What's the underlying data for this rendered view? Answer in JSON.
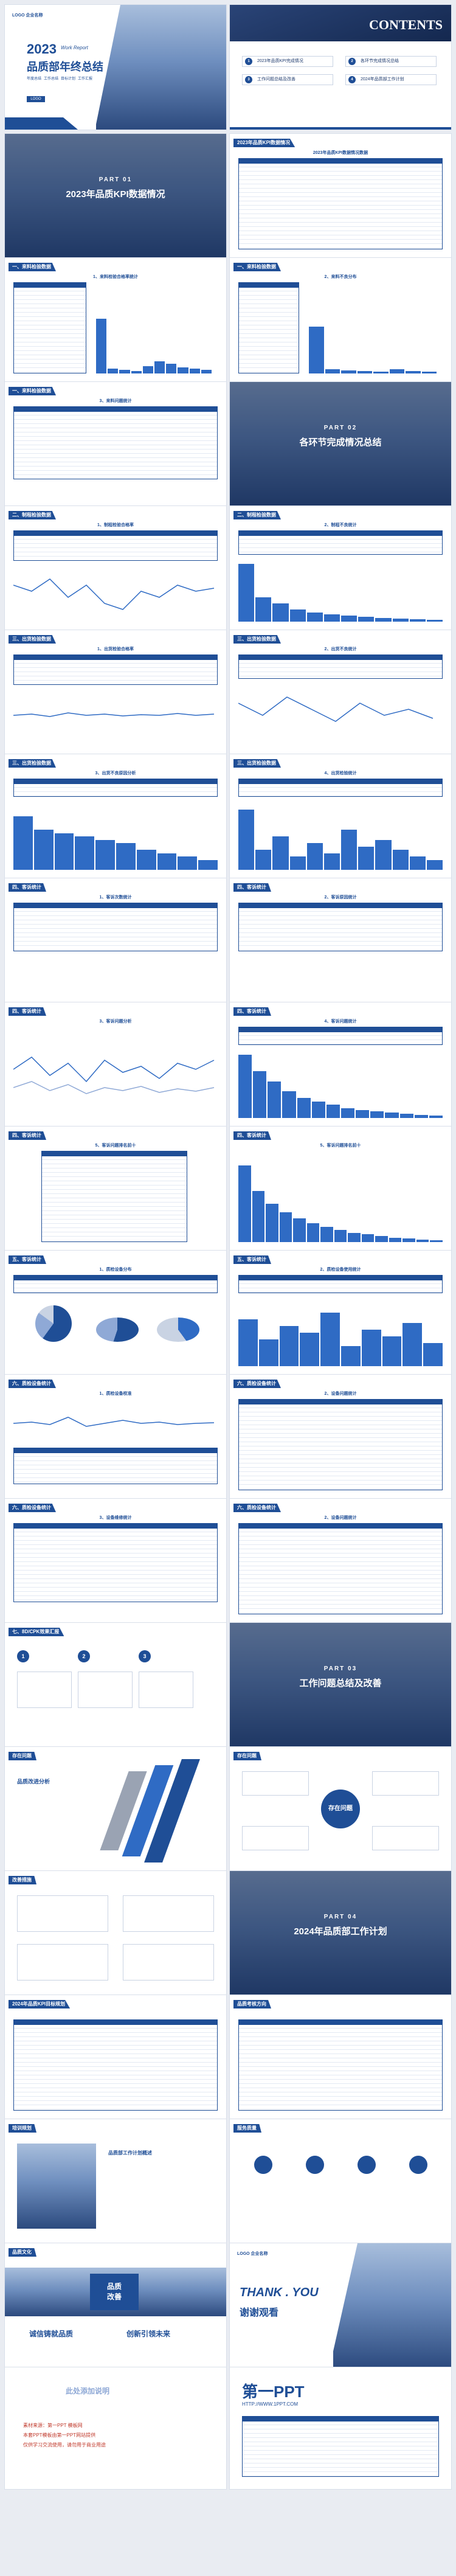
{
  "cover": {
    "logo": "LOGO 企业名称",
    "year": "2023",
    "year_suffix": "Work Report",
    "title": "品质部年终总结",
    "tags": [
      "年度总结",
      "工作总结",
      "目标计划",
      "工作汇报"
    ],
    "logo_small": "LOGO"
  },
  "contents": {
    "title": "CONTENTS",
    "items": [
      "2023年品质KPI完成情况",
      "各环节完成情况总结",
      "工作问题总结及改善",
      "2024年品质部工作计划"
    ]
  },
  "kpi_table": {
    "header": "2023年品质KPI数据情况",
    "subtitle": "2023年品质KPI数据情况数据"
  },
  "part01": {
    "label": "PART 01",
    "title": "2023年品质KPI数据情况"
  },
  "sections": {
    "s1": "一、来料检验数据",
    "s2": "二、制程检验数据",
    "s3": "三、出货检验数据",
    "s4": "四、客诉统计",
    "s5": "五、客诉统计",
    "s6": "六、质检设备统计",
    "s7": "七、8D/CPK效果汇报"
  },
  "chart_titles": {
    "c1": "1、来料检验合格率统计",
    "c2": "2、来料不良分布",
    "c3": "3、来料问题统计",
    "c4": "1、制程检验合格率",
    "c5": "2、制程不良统计",
    "c6": "1、出货检验合格率",
    "c7": "2、出货不良统计",
    "c8": "3、出货不良原因分析",
    "c9": "4、出货检验统计",
    "c10": "1、客诉次数统计",
    "c11": "2、客诉原因统计",
    "c12": "3、客诉问题分析",
    "c13": "4、客诉问题统计",
    "c14": "5、客诉问题排名前十",
    "c15": "1、质检设备分布",
    "c16": "2、质检设备使用统计",
    "c17": "1、质检设备校准",
    "c18": "2、设备问题统计",
    "c19": "3、设备维修统计"
  },
  "part02": {
    "label": "PART 02",
    "title": "各环节完成情况总结"
  },
  "part03": {
    "label": "PART 03",
    "title": "工作问题总结及改善"
  },
  "part04": {
    "label": "PART 04",
    "title": "2024年品质部工作计划"
  },
  "problems": {
    "header": "存在问题",
    "analysis": "品质改进分析",
    "center": "存在问题"
  },
  "improve": {
    "header": "改善措施"
  },
  "plan2024": {
    "header": "2024年品质KPI目标规划",
    "header2": "品质考核方向"
  },
  "training": {
    "header": "培训规划",
    "header2": "服务质量",
    "card_title": "品质部工作计划概述"
  },
  "culture": {
    "header": "品质文化",
    "word_a": "品质",
    "word_b": "改善",
    "slogan_a": "诚信铸就品质",
    "slogan_b": "创新引领未来"
  },
  "ending": {
    "logo": "LOGO 企业名称",
    "en": "THANK . YOU",
    "cn": "谢谢观看"
  },
  "credits": {
    "brand_logo": "第一PPT",
    "brand_url": "HTTP://WWW.1PPT.COM",
    "line1": "素材来源：第一PPT 模板网",
    "line2": "本套PPT模板由第一PPT网站提供",
    "line3": "仅供学习交流使用，请勿用于商业用途",
    "caption": "此处添加说明"
  },
  "colors": {
    "primary": "#1f4e96",
    "accent": "#2f6bc4",
    "bg": "#e9ecf2"
  }
}
